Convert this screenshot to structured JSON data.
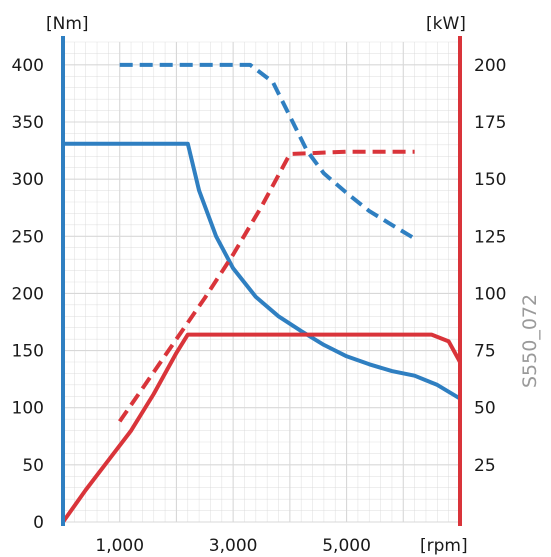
{
  "chart_data": {
    "type": "line",
    "left_unit": "[Nm]",
    "right_unit": "[kW]",
    "x_unit": "[rpm]",
    "figure_code": "S550_072",
    "x_ticks": [
      "1,000",
      "3,000",
      "5,000"
    ],
    "x_tick_values": [
      1000,
      3000,
      5000
    ],
    "y_left_ticks": [
      0,
      50,
      100,
      150,
      200,
      250,
      300,
      350,
      400
    ],
    "y_right_ticks": [
      25,
      50,
      75,
      100,
      125,
      150,
      175,
      200
    ],
    "xlim": [
      0,
      7000
    ],
    "ylim_left": [
      0,
      420
    ],
    "ylim_right": [
      0,
      210
    ],
    "grid": true,
    "colors": {
      "torque": "#2f7fc1",
      "power": "#d9343a",
      "grid": "#d8d8d8"
    },
    "series": [
      {
        "axis": "left",
        "style": "solid",
        "color_key": "torque",
        "x": [
          0,
          2200,
          2400,
          2700,
          3000,
          3400,
          3800,
          4200,
          4600,
          5000,
          5400,
          5800,
          6200,
          6600,
          7000
        ],
        "y": [
          331,
          331,
          290,
          250,
          222,
          197,
          180,
          167,
          155,
          145,
          138,
          132,
          128,
          120,
          108
        ]
      },
      {
        "axis": "left",
        "style": "dashed",
        "color_key": "torque",
        "x": [
          1000,
          3300,
          3700,
          4000,
          4300,
          4600,
          5000,
          5400,
          5800,
          6200
        ],
        "y": [
          400,
          400,
          385,
          355,
          325,
          305,
          288,
          272,
          260,
          248
        ]
      },
      {
        "axis": "right",
        "style": "solid",
        "color_key": "power",
        "x": [
          0,
          400,
          800,
          1200,
          1600,
          2000,
          2200,
          4200,
          6500,
          6800,
          7000
        ],
        "y": [
          0,
          14,
          27,
          40,
          56,
          74,
          82,
          82,
          82,
          79,
          70
        ]
      },
      {
        "axis": "right",
        "style": "dashed",
        "color_key": "power",
        "x": [
          1000,
          1500,
          2000,
          2500,
          3000,
          3500,
          4000,
          5000,
          6000,
          6200
        ],
        "y": [
          44,
          62,
          80,
          98,
          117,
          138,
          161,
          162,
          162,
          162
        ]
      }
    ]
  }
}
